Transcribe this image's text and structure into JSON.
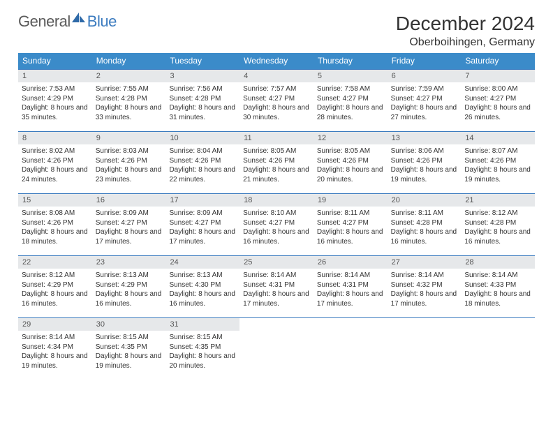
{
  "logo": {
    "general": "General",
    "blue": "Blue"
  },
  "title": "December 2024",
  "subtitle": "Oberboihingen, Germany",
  "colors": {
    "header_bg": "#3b8bc9",
    "header_text": "#ffffff",
    "week_border": "#3b7bbf",
    "daynum_bg": "#e6e8ea",
    "daynum_text": "#555555",
    "body_text": "#333333",
    "logo_general": "#5a5a5a",
    "logo_blue": "#3b7bbf",
    "page_bg": "#ffffff"
  },
  "day_names": [
    "Sunday",
    "Monday",
    "Tuesday",
    "Wednesday",
    "Thursday",
    "Friday",
    "Saturday"
  ],
  "weeks": [
    [
      {
        "n": "1",
        "sr": "7:53 AM",
        "ss": "4:29 PM",
        "dl": "8 hours and 35 minutes."
      },
      {
        "n": "2",
        "sr": "7:55 AM",
        "ss": "4:28 PM",
        "dl": "8 hours and 33 minutes."
      },
      {
        "n": "3",
        "sr": "7:56 AM",
        "ss": "4:28 PM",
        "dl": "8 hours and 31 minutes."
      },
      {
        "n": "4",
        "sr": "7:57 AM",
        "ss": "4:27 PM",
        "dl": "8 hours and 30 minutes."
      },
      {
        "n": "5",
        "sr": "7:58 AM",
        "ss": "4:27 PM",
        "dl": "8 hours and 28 minutes."
      },
      {
        "n": "6",
        "sr": "7:59 AM",
        "ss": "4:27 PM",
        "dl": "8 hours and 27 minutes."
      },
      {
        "n": "7",
        "sr": "8:00 AM",
        "ss": "4:27 PM",
        "dl": "8 hours and 26 minutes."
      }
    ],
    [
      {
        "n": "8",
        "sr": "8:02 AM",
        "ss": "4:26 PM",
        "dl": "8 hours and 24 minutes."
      },
      {
        "n": "9",
        "sr": "8:03 AM",
        "ss": "4:26 PM",
        "dl": "8 hours and 23 minutes."
      },
      {
        "n": "10",
        "sr": "8:04 AM",
        "ss": "4:26 PM",
        "dl": "8 hours and 22 minutes."
      },
      {
        "n": "11",
        "sr": "8:05 AM",
        "ss": "4:26 PM",
        "dl": "8 hours and 21 minutes."
      },
      {
        "n": "12",
        "sr": "8:05 AM",
        "ss": "4:26 PM",
        "dl": "8 hours and 20 minutes."
      },
      {
        "n": "13",
        "sr": "8:06 AM",
        "ss": "4:26 PM",
        "dl": "8 hours and 19 minutes."
      },
      {
        "n": "14",
        "sr": "8:07 AM",
        "ss": "4:26 PM",
        "dl": "8 hours and 19 minutes."
      }
    ],
    [
      {
        "n": "15",
        "sr": "8:08 AM",
        "ss": "4:26 PM",
        "dl": "8 hours and 18 minutes."
      },
      {
        "n": "16",
        "sr": "8:09 AM",
        "ss": "4:27 PM",
        "dl": "8 hours and 17 minutes."
      },
      {
        "n": "17",
        "sr": "8:09 AM",
        "ss": "4:27 PM",
        "dl": "8 hours and 17 minutes."
      },
      {
        "n": "18",
        "sr": "8:10 AM",
        "ss": "4:27 PM",
        "dl": "8 hours and 16 minutes."
      },
      {
        "n": "19",
        "sr": "8:11 AM",
        "ss": "4:27 PM",
        "dl": "8 hours and 16 minutes."
      },
      {
        "n": "20",
        "sr": "8:11 AM",
        "ss": "4:28 PM",
        "dl": "8 hours and 16 minutes."
      },
      {
        "n": "21",
        "sr": "8:12 AM",
        "ss": "4:28 PM",
        "dl": "8 hours and 16 minutes."
      }
    ],
    [
      {
        "n": "22",
        "sr": "8:12 AM",
        "ss": "4:29 PM",
        "dl": "8 hours and 16 minutes."
      },
      {
        "n": "23",
        "sr": "8:13 AM",
        "ss": "4:29 PM",
        "dl": "8 hours and 16 minutes."
      },
      {
        "n": "24",
        "sr": "8:13 AM",
        "ss": "4:30 PM",
        "dl": "8 hours and 16 minutes."
      },
      {
        "n": "25",
        "sr": "8:14 AM",
        "ss": "4:31 PM",
        "dl": "8 hours and 17 minutes."
      },
      {
        "n": "26",
        "sr": "8:14 AM",
        "ss": "4:31 PM",
        "dl": "8 hours and 17 minutes."
      },
      {
        "n": "27",
        "sr": "8:14 AM",
        "ss": "4:32 PM",
        "dl": "8 hours and 17 minutes."
      },
      {
        "n": "28",
        "sr": "8:14 AM",
        "ss": "4:33 PM",
        "dl": "8 hours and 18 minutes."
      }
    ],
    [
      {
        "n": "29",
        "sr": "8:14 AM",
        "ss": "4:34 PM",
        "dl": "8 hours and 19 minutes."
      },
      {
        "n": "30",
        "sr": "8:15 AM",
        "ss": "4:35 PM",
        "dl": "8 hours and 19 minutes."
      },
      {
        "n": "31",
        "sr": "8:15 AM",
        "ss": "4:35 PM",
        "dl": "8 hours and 20 minutes."
      },
      {
        "empty": true
      },
      {
        "empty": true
      },
      {
        "empty": true
      },
      {
        "empty": true
      }
    ]
  ],
  "labels": {
    "sunrise": "Sunrise:",
    "sunset": "Sunset:",
    "daylight": "Daylight:"
  }
}
